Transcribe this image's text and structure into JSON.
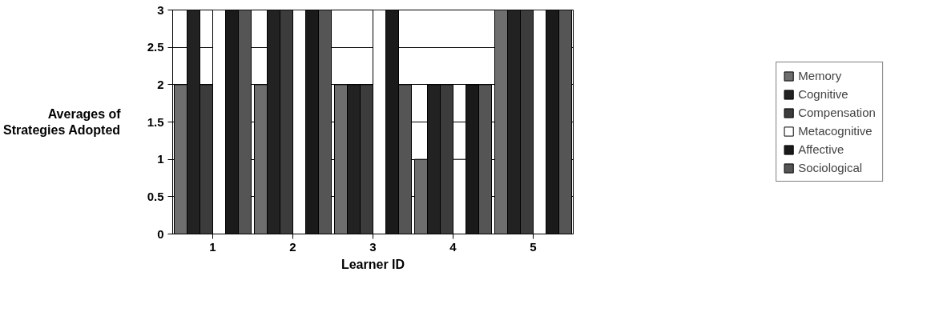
{
  "chart_data": {
    "type": "bar",
    "xlabel": "Learner ID",
    "ylabel": "Averages of Strategies Adopted",
    "categories": [
      "1",
      "2",
      "3",
      "4",
      "5"
    ],
    "series": [
      {
        "name": "Memory",
        "color": "#6e6e6e",
        "values": [
          2,
          2,
          2,
          1,
          3
        ]
      },
      {
        "name": "Cognitive",
        "color": "#222222",
        "values": [
          3,
          3,
          2,
          2,
          3
        ]
      },
      {
        "name": "Compensation",
        "color": "#3c3c3c",
        "values": [
          2,
          3,
          2,
          2,
          3
        ]
      },
      {
        "name": "Metacognitive",
        "color": "#ffffff",
        "values": [
          3,
          3,
          3,
          1,
          3
        ]
      },
      {
        "name": "Affective",
        "color": "#1a1a1a",
        "values": [
          3,
          3,
          3,
          2,
          3
        ]
      },
      {
        "name": "Sociological",
        "color": "#555555",
        "values": [
          3,
          3,
          2,
          2,
          3
        ]
      }
    ],
    "ylim": [
      0,
      3
    ],
    "yticks": [
      0,
      0.5,
      1,
      1.5,
      2,
      2.5,
      3
    ],
    "grid": "y",
    "legend": "right"
  }
}
